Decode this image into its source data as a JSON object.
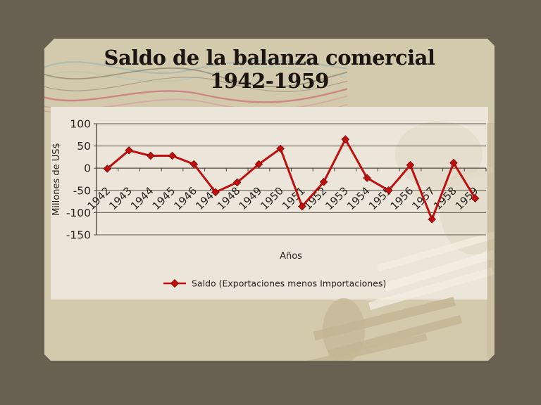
{
  "slide": {
    "title_line1": "Saldo de la balanza comercial",
    "title_line2": "1942-1959"
  },
  "chart_data": {
    "type": "line",
    "title": "Saldo de la balanza comercial 1942-1959",
    "xlabel": "Años",
    "ylabel": "Millones de US$",
    "categories": [
      "1942",
      "1943",
      "1944",
      "1945",
      "1946",
      "1947",
      "1948",
      "1949",
      "1950",
      "1951",
      "1952",
      "1953",
      "1954",
      "1955",
      "1956",
      "1957",
      "1958",
      "1959"
    ],
    "series": [
      {
        "name": "Saldo (Exportaciones menos Importaciones)",
        "values": [
          -1,
          40,
          28,
          28,
          9,
          -54,
          -32,
          9,
          44,
          -86,
          -31,
          65,
          -22,
          -50,
          7,
          -115,
          12,
          -68
        ]
      }
    ],
    "ylim": [
      -150,
      100
    ],
    "ytick_interval": 50,
    "grid": true,
    "legend_position": "bottom",
    "marker": "diamond",
    "x_labels_rotated_degrees": -45
  },
  "colors": {
    "slide_bg": "#6a6052",
    "panel_bg": "#d3c9ad",
    "chart_bg": "#ebe6d9",
    "line": "#c00d0d",
    "marker_edge": "#7d0505",
    "grid": "#5e584d",
    "axis": "#47423a",
    "chart_text": "#272420",
    "title_text": "#1b1410",
    "swirl_teal": "#8fb5ae",
    "swirl_red": "#c8505e",
    "grunge_dark": "#c3b694",
    "grunge_light": "#f2ede0"
  }
}
